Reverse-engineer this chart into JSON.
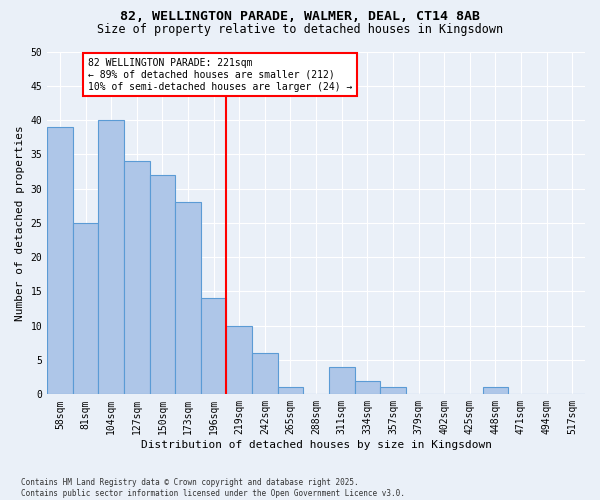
{
  "title1": "82, WELLINGTON PARADE, WALMER, DEAL, CT14 8AB",
  "title2": "Size of property relative to detached houses in Kingsdown",
  "xlabel": "Distribution of detached houses by size in Kingsdown",
  "ylabel": "Number of detached properties",
  "categories": [
    "58sqm",
    "81sqm",
    "104sqm",
    "127sqm",
    "150sqm",
    "173sqm",
    "196sqm",
    "219sqm",
    "242sqm",
    "265sqm",
    "288sqm",
    "311sqm",
    "334sqm",
    "357sqm",
    "379sqm",
    "402sqm",
    "425sqm",
    "448sqm",
    "471sqm",
    "494sqm",
    "517sqm"
  ],
  "values": [
    39,
    25,
    40,
    34,
    32,
    28,
    14,
    10,
    6,
    1,
    0,
    4,
    2,
    1,
    0,
    0,
    0,
    1,
    0,
    0,
    0
  ],
  "bar_color": "#aec6e8",
  "bar_edge_color": "#5b9bd5",
  "red_line_index": 7,
  "annotation_text": "82 WELLINGTON PARADE: 221sqm\n← 89% of detached houses are smaller (212)\n10% of semi-detached houses are larger (24) →",
  "annotation_box_color": "white",
  "annotation_box_edge": "red",
  "ylim": [
    0,
    50
  ],
  "yticks": [
    0,
    5,
    10,
    15,
    20,
    25,
    30,
    35,
    40,
    45,
    50
  ],
  "background_color": "#eaf0f8",
  "grid_color": "white",
  "footnote": "Contains HM Land Registry data © Crown copyright and database right 2025.\nContains public sector information licensed under the Open Government Licence v3.0.",
  "title1_fontsize": 9.5,
  "title2_fontsize": 8.5,
  "tick_fontsize": 7,
  "ylabel_fontsize": 8,
  "xlabel_fontsize": 8
}
